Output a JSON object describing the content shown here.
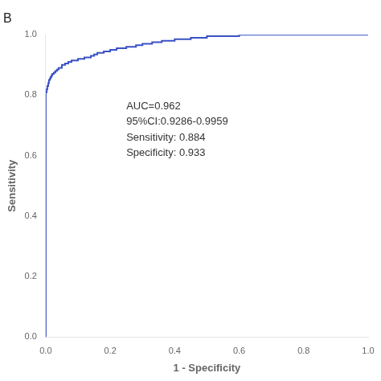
{
  "chart_data": {
    "type": "line",
    "line_style": "step",
    "title": "B",
    "xlabel": "1 - Specificity",
    "ylabel": "Sensitivity",
    "annotations": [
      "AUC=0.962",
      "95%CI:0.9286-0.9959",
      "Sensitivity: 0.884",
      "Specificity: 0.933"
    ],
    "color": "#3a52c4",
    "grid": false,
    "x": [
      0.0,
      0.0,
      0.0,
      0.0,
      0.003,
      0.003,
      0.005,
      0.005,
      0.008,
      0.008,
      0.01,
      0.01,
      0.013,
      0.013,
      0.015,
      0.015,
      0.018,
      0.018,
      0.02,
      0.02,
      0.025,
      0.025,
      0.03,
      0.03,
      0.035,
      0.035,
      0.04,
      0.04,
      0.05,
      0.05,
      0.06,
      0.06,
      0.07,
      0.075,
      0.08,
      0.09,
      0.1,
      0.11,
      0.12,
      0.13,
      0.14,
      0.15,
      0.16,
      0.18,
      0.2,
      0.22,
      0.25,
      0.28,
      0.3,
      0.33,
      0.36,
      0.4,
      0.45,
      0.5,
      0.6,
      0.7,
      0.8,
      0.9,
      1.0
    ],
    "values": [
      0.0,
      0.78,
      0.8,
      0.81,
      0.81,
      0.82,
      0.82,
      0.83,
      0.83,
      0.84,
      0.84,
      0.85,
      0.85,
      0.855,
      0.855,
      0.86,
      0.86,
      0.865,
      0.865,
      0.87,
      0.87,
      0.875,
      0.875,
      0.88,
      0.88,
      0.885,
      0.885,
      0.89,
      0.89,
      0.9,
      0.9,
      0.905,
      0.905,
      0.91,
      0.91,
      0.915,
      0.915,
      0.92,
      0.92,
      0.925,
      0.925,
      0.93,
      0.935,
      0.94,
      0.945,
      0.95,
      0.955,
      0.96,
      0.965,
      0.97,
      0.975,
      0.98,
      0.985,
      0.99,
      0.995,
      1.0,
      1.0,
      1.0,
      1.0
    ],
    "xlim": [
      0.0,
      1.0
    ],
    "ylim": [
      0.0,
      1.0
    ],
    "xticks": [
      {
        "value": 0.0,
        "label": "0.0"
      },
      0.2,
      0.4,
      0.6,
      0.8,
      {
        "value": 1.0,
        "label": "1.0"
      }
    ],
    "yticks": [
      {
        "value": 0.0,
        "label": "0.0"
      },
      0.2,
      0.4,
      0.6,
      0.8,
      {
        "value": 1.0,
        "label": "1.0"
      }
    ]
  }
}
